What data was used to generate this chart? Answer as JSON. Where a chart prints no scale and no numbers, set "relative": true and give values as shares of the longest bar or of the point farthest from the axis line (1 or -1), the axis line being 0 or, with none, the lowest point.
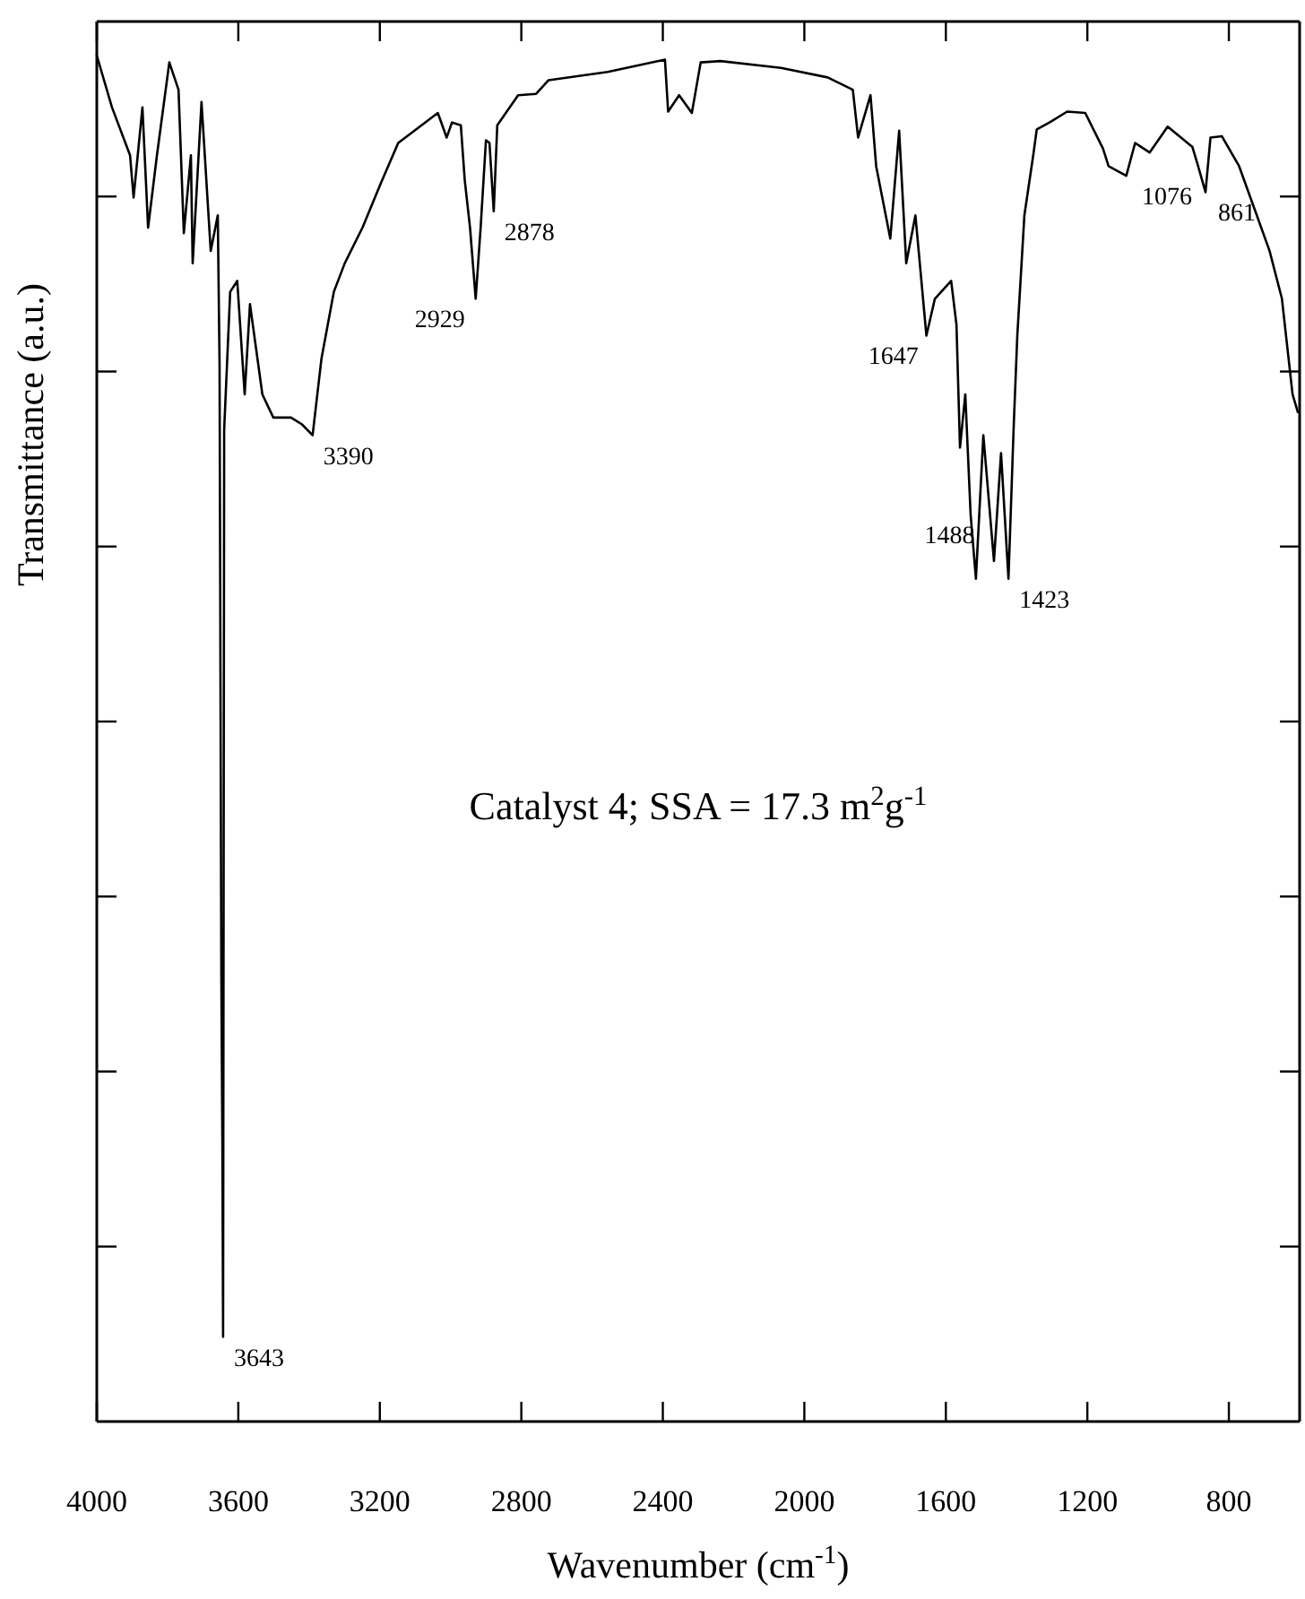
{
  "chart_data": {
    "type": "line",
    "relative": true,
    "xlabel": "Wavenumber (cm$^{-1}$)",
    "ylabel": "Transmittance (a.u.)",
    "xlim": [
      4000,
      600
    ],
    "xticks": [
      4000,
      3600,
      3200,
      2800,
      2400,
      2000,
      1600,
      1200,
      800
    ],
    "x": [
      4000,
      3957,
      3906,
      3896,
      3871,
      3855,
      3830,
      3795,
      3769,
      3754,
      3734,
      3729,
      3704,
      3678,
      3658,
      3653,
      3648,
      3645,
      3643,
      3640,
      3623,
      3603,
      3582,
      3567,
      3532,
      3501,
      3451,
      3420,
      3390,
      3365,
      3330,
      3299,
      3249,
      3198,
      3148,
      3097,
      3036,
      3011,
      2996,
      2971,
      2960,
      2945,
      2929,
      2915,
      2900,
      2890,
      2878,
      2868,
      2809,
      2758,
      2723,
      2556,
      2394,
      2385,
      2354,
      2318,
      2293,
      2237,
      2066,
      1934,
      1863,
      1848,
      1813,
      1797,
      1757,
      1732,
      1712,
      1686,
      1655,
      1631,
      1585,
      1570,
      1560,
      1545,
      1530,
      1515,
      1494,
      1464,
      1444,
      1423,
      1408,
      1398,
      1378,
      1353,
      1343,
      1307,
      1257,
      1206,
      1156,
      1140,
      1090,
      1065,
      1024,
      973,
      903,
      888,
      866,
      852,
      820,
      771,
      721,
      685,
      650,
      620,
      605
    ],
    "series": [
      {
        "color": "#000000",
        "values": [
          1.0,
          0.962,
          0.927,
          0.896,
          0.962,
          0.874,
          0.927,
          0.995,
          0.975,
          0.87,
          0.927,
          0.848,
          0.966,
          0.857,
          0.883,
          0.774,
          0.328,
          0.202,
          0.062,
          0.726,
          0.827,
          0.835,
          0.752,
          0.818,
          0.752,
          0.735,
          0.735,
          0.73,
          0.722,
          0.778,
          0.827,
          0.848,
          0.874,
          0.906,
          0.936,
          0.946,
          0.958,
          0.94,
          0.951,
          0.949,
          0.909,
          0.874,
          0.822,
          0.874,
          0.938,
          0.936,
          0.886,
          0.949,
          0.971,
          0.972,
          0.982,
          0.988,
          0.997,
          0.959,
          0.971,
          0.958,
          0.995,
          0.996,
          0.991,
          0.984,
          0.975,
          0.94,
          0.971,
          0.919,
          0.866,
          0.945,
          0.848,
          0.883,
          0.795,
          0.822,
          0.835,
          0.803,
          0.713,
          0.752,
          0.664,
          0.617,
          0.722,
          0.63,
          0.709,
          0.617,
          0.73,
          0.795,
          0.883,
          0.927,
          0.946,
          0.951,
          0.959,
          0.958,
          0.932,
          0.919,
          0.912,
          0.936,
          0.929,
          0.948,
          0.933,
          0.92,
          0.9,
          0.94,
          0.941,
          0.919,
          0.883,
          0.857,
          0.822,
          0.752,
          0.739
        ]
      }
    ],
    "annotations": [
      {
        "text": "3643",
        "x": 3643,
        "y": 0.062
      },
      {
        "text": "3390",
        "x": 3390,
        "y": 0.722
      },
      {
        "text": "2929",
        "x": 2929,
        "y": 0.822
      },
      {
        "text": "2878",
        "x": 2878,
        "y": 0.886
      },
      {
        "text": "1647",
        "x": 1647,
        "y": 0.795
      },
      {
        "text": "1488",
        "x": 1488,
        "y": 0.664
      },
      {
        "text": "1423",
        "x": 1423,
        "y": 0.617
      },
      {
        "text": "1076",
        "x": 1076,
        "y": 0.912
      },
      {
        "text": "861",
        "x": 861,
        "y": 0.9
      },
      "Catalyst 4; SSA = 17.3 m$^{2}$g$^{-1}$"
    ]
  }
}
